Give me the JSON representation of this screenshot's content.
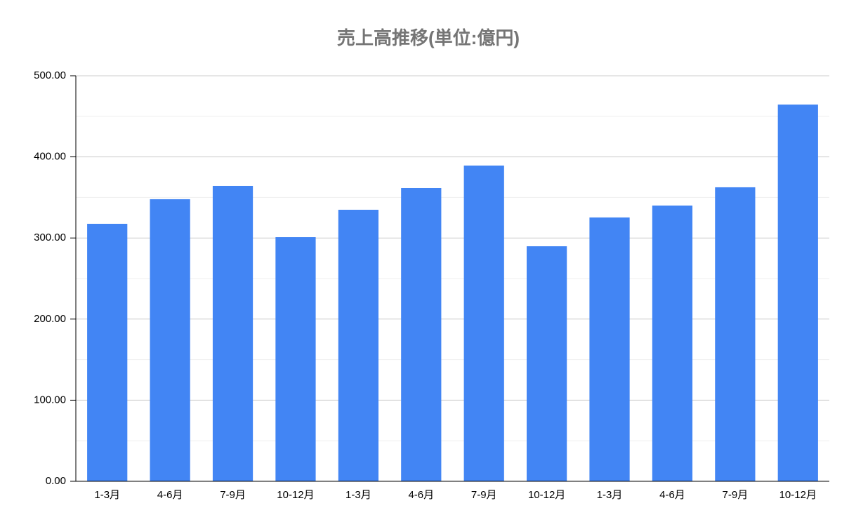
{
  "chart_data": {
    "type": "bar",
    "title": "売上高推移(単位:億円)",
    "categories": [
      "1-3月",
      "4-6月",
      "7-9月",
      "10-12月",
      "1-3月",
      "4-6月",
      "7-9月",
      "10-12月",
      "1-3月",
      "4-6月",
      "7-9月",
      "10-12月"
    ],
    "values": [
      317.5,
      347.8,
      364.2,
      301,
      334.8,
      361.6,
      389.3,
      289.8,
      325.3,
      340,
      362.5,
      464.5
    ],
    "color": "#4285f4",
    "ylim": [
      0,
      500
    ],
    "yticks": [
      {
        "value": 0,
        "label": "0.00"
      },
      {
        "value": 100,
        "label": "100.00"
      },
      {
        "value": 200,
        "label": "200.00"
      },
      {
        "value": 300,
        "label": "300.00"
      },
      {
        "value": 400,
        "label": "400.00"
      },
      {
        "value": 500,
        "label": "500.00"
      }
    ],
    "minor_yticks": [
      50,
      150,
      250,
      350,
      450
    ],
    "grid": true
  }
}
